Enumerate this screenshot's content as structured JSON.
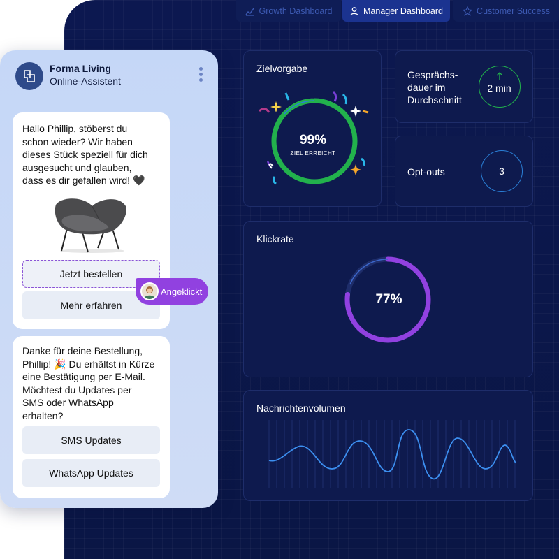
{
  "tabs": [
    {
      "label": "Growth Dashboard",
      "icon": "chart-icon"
    },
    {
      "label": "Manager Dashboard",
      "icon": "user-icon"
    },
    {
      "label": "Customer Success",
      "icon": "star-icon"
    }
  ],
  "goal_card": {
    "title": "Zielvorgabe",
    "value": "99%",
    "sublabel": "ZIEL ERREICHT",
    "progress": 0.99,
    "color": "#22b14c"
  },
  "duration_card": {
    "title_lines": [
      "Gesprächs-",
      "dauer im",
      "Durchschnitt"
    ],
    "value": "2 min",
    "trend_icon": "arrow-up-icon",
    "color": "#22b14c"
  },
  "optout_card": {
    "title": "Opt-outs",
    "value": "3",
    "color": "#2a7fd6"
  },
  "click_card": {
    "title": "Klickrate",
    "value": "77%",
    "progress": 0.77,
    "color": "#9141e0"
  },
  "volume_card": {
    "title": "Nachrichtenvolumen"
  },
  "chat": {
    "brand": "Forma Living",
    "subtitle": "Online-Assistent",
    "message1_lines": [
      "Hallo Phillip, stöberst du",
      "schon wieder? Wir haben",
      "dieses Stück speziell für dich",
      "ausgesucht und glauben,",
      "dass es dir gefallen wird! 🖤"
    ],
    "buttons1": [
      "Jetzt bestellen",
      "Mehr erfahren"
    ],
    "clicked_label": "Angeklickt",
    "message2_lines": [
      "Danke für deine Bestellung,",
      "Phillip! 🎉 Du erhältst in Kürze",
      "eine Bestätigung per E-Mail.",
      "Möchtest du Updates per",
      "SMS oder WhatsApp",
      "erhalten?"
    ],
    "buttons2": [
      "SMS Updates",
      "WhatsApp Updates"
    ]
  }
}
